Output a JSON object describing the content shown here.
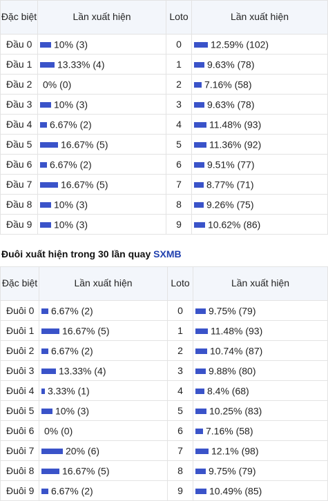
{
  "head": {
    "col_special": "Đặc biệt",
    "col_freq": "Lần xuất hiện",
    "col_loto": "Loto",
    "col_freq2": "Lần xuất hiện"
  },
  "dau": [
    {
      "label": "Đầu 0",
      "text": "10% (3)",
      "pct": 10,
      "loto": "0",
      "text2": "12.59% (102)",
      "pct2": 12.59
    },
    {
      "label": "Đầu 1",
      "text": "13.33% (4)",
      "pct": 13.33,
      "loto": "1",
      "text2": "9.63% (78)",
      "pct2": 9.63
    },
    {
      "label": "Đầu 2",
      "text": "0% (0)",
      "pct": 0,
      "loto": "2",
      "text2": "7.16% (58)",
      "pct2": 7.16
    },
    {
      "label": "Đầu 3",
      "text": "10% (3)",
      "pct": 10,
      "loto": "3",
      "text2": "9.63% (78)",
      "pct2": 9.63
    },
    {
      "label": "Đầu 4",
      "text": "6.67% (2)",
      "pct": 6.67,
      "loto": "4",
      "text2": "11.48% (93)",
      "pct2": 11.48
    },
    {
      "label": "Đầu 5",
      "text": "16.67% (5)",
      "pct": 16.67,
      "loto": "5",
      "text2": "11.36% (92)",
      "pct2": 11.36
    },
    {
      "label": "Đầu 6",
      "text": "6.67% (2)",
      "pct": 6.67,
      "loto": "6",
      "text2": "9.51% (77)",
      "pct2": 9.51
    },
    {
      "label": "Đầu 7",
      "text": "16.67% (5)",
      "pct": 16.67,
      "loto": "7",
      "text2": "8.77% (71)",
      "pct2": 8.77
    },
    {
      "label": "Đầu 8",
      "text": "10% (3)",
      "pct": 10,
      "loto": "8",
      "text2": "9.26% (75)",
      "pct2": 9.26
    },
    {
      "label": "Đầu 9",
      "text": "10% (3)",
      "pct": 10,
      "loto": "9",
      "text2": "10.62% (86)",
      "pct2": 10.62
    }
  ],
  "section2": {
    "heading": "Đuôi xuất hiện trong 30 lần quay",
    "source": "SXMB"
  },
  "duoi": [
    {
      "label": "Đuôi 0",
      "text": "6.67% (2)",
      "pct": 6.67,
      "loto": "0",
      "text2": "9.75% (79)",
      "pct2": 9.75
    },
    {
      "label": "Đuôi 1",
      "text": "16.67% (5)",
      "pct": 16.67,
      "loto": "1",
      "text2": "11.48% (93)",
      "pct2": 11.48
    },
    {
      "label": "Đuôi 2",
      "text": "6.67% (2)",
      "pct": 6.67,
      "loto": "2",
      "text2": "10.74% (87)",
      "pct2": 10.74
    },
    {
      "label": "Đuôi 3",
      "text": "13.33% (4)",
      "pct": 13.33,
      "loto": "3",
      "text2": "9.88% (80)",
      "pct2": 9.88
    },
    {
      "label": "Đuôi 4",
      "text": "3.33% (1)",
      "pct": 3.33,
      "loto": "4",
      "text2": "8.4% (68)",
      "pct2": 8.4
    },
    {
      "label": "Đuôi 5",
      "text": "10% (3)",
      "pct": 10,
      "loto": "5",
      "text2": "10.25% (83)",
      "pct2": 10.25
    },
    {
      "label": "Đuôi 6",
      "text": "0% (0)",
      "pct": 0,
      "loto": "6",
      "text2": "7.16% (58)",
      "pct2": 7.16
    },
    {
      "label": "Đuôi 7",
      "text": "20% (6)",
      "pct": 20,
      "loto": "7",
      "text2": "12.1% (98)",
      "pct2": 12.1
    },
    {
      "label": "Đuôi 8",
      "text": "16.67% (5)",
      "pct": 16.67,
      "loto": "8",
      "text2": "9.75% (79)",
      "pct2": 9.75
    },
    {
      "label": "Đuôi 9",
      "text": "6.67% (2)",
      "pct": 6.67,
      "loto": "9",
      "text2": "10.49% (85)",
      "pct2": 10.49
    }
  ],
  "colors": {
    "bar": "#3a53c9",
    "label": "#c3181e",
    "source_link": "#1f3fae"
  }
}
